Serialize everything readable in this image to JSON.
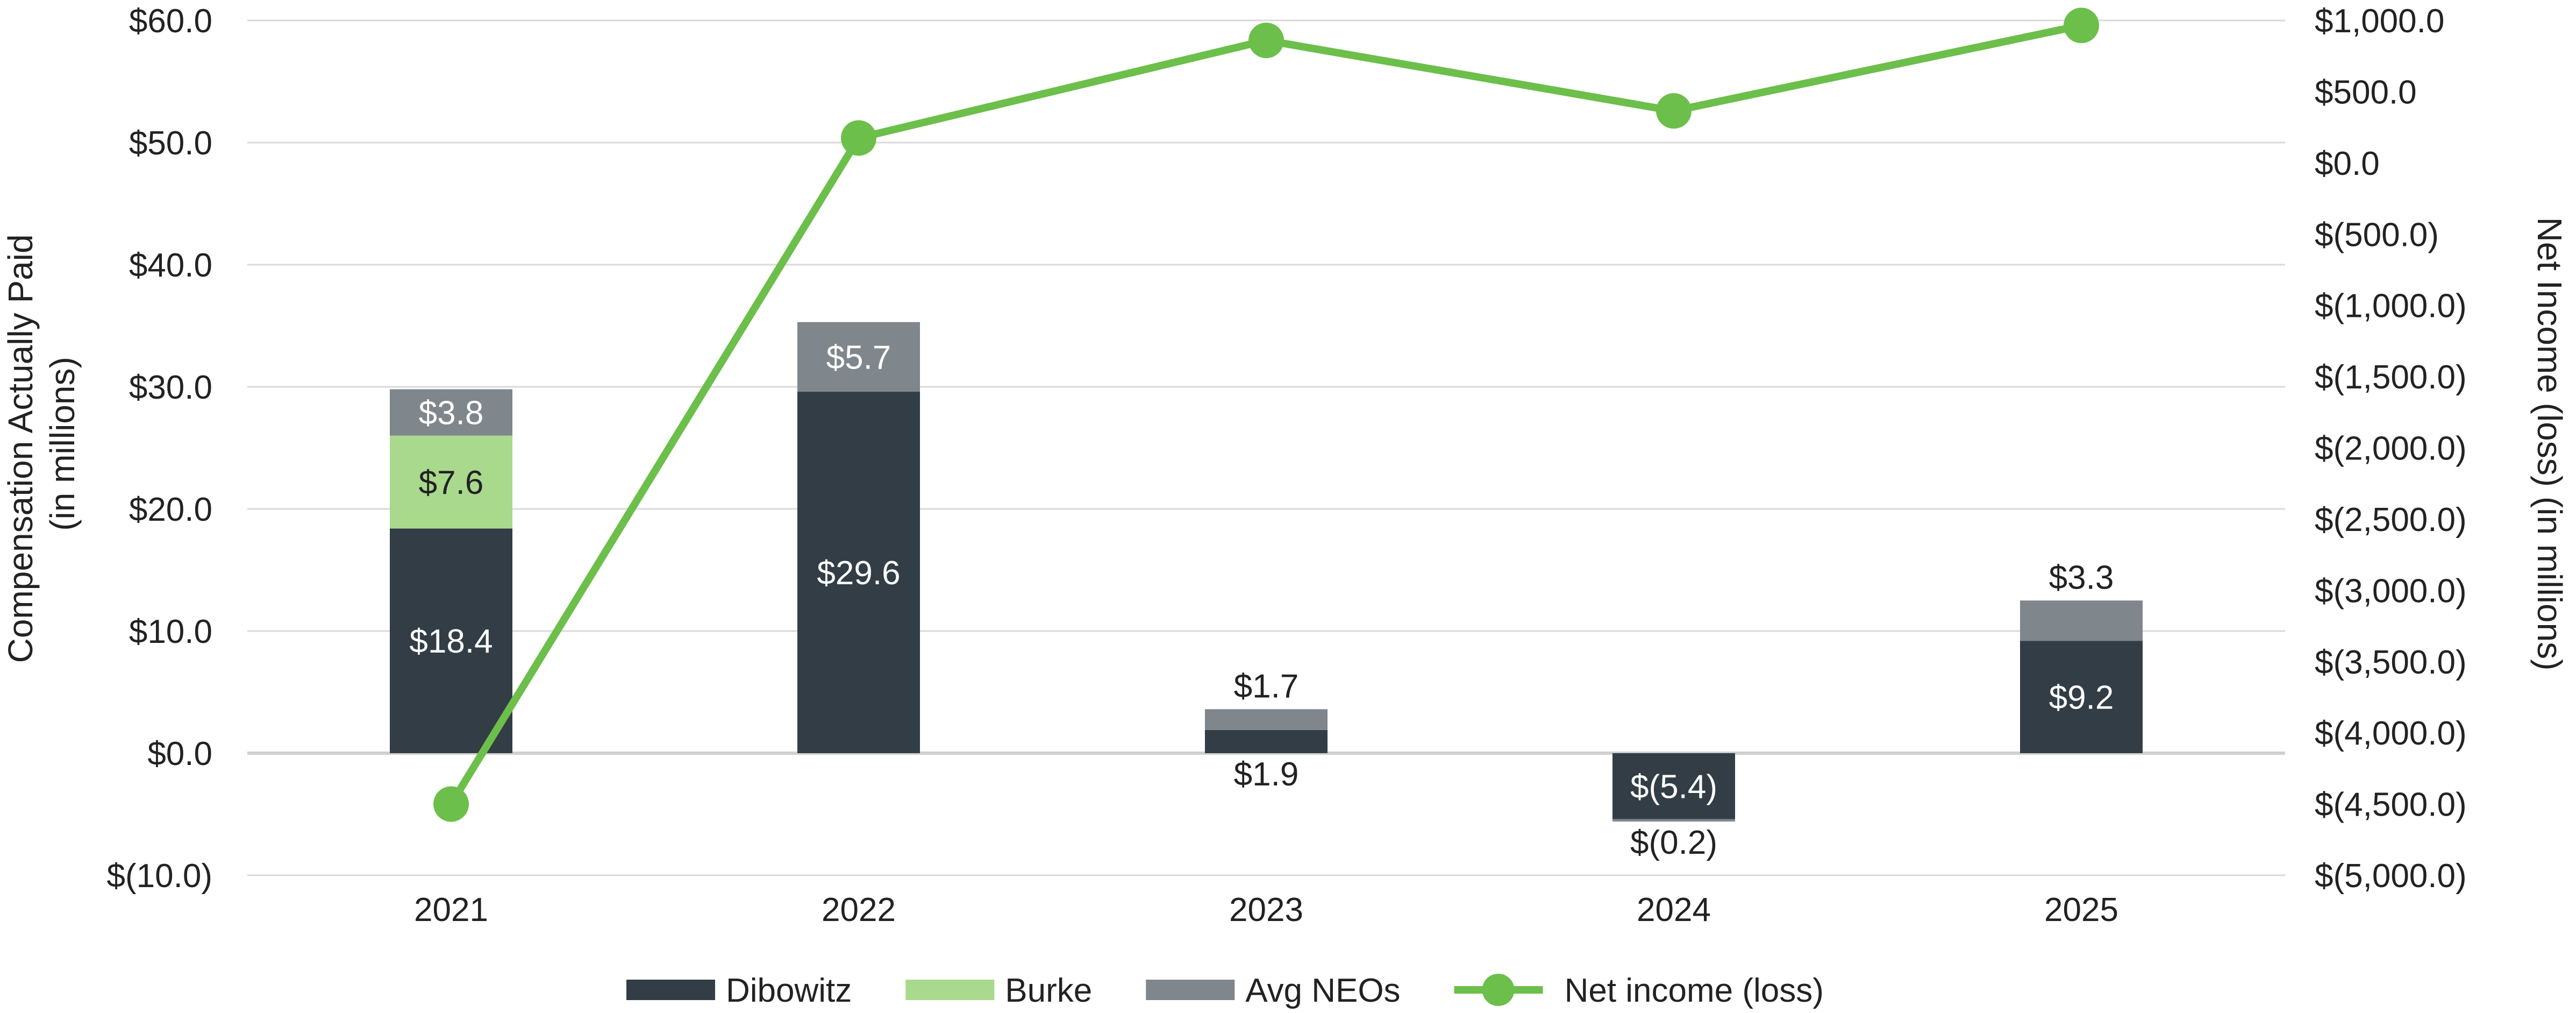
{
  "chart_data": {
    "type": "bar",
    "stacked": true,
    "categories": [
      "2021",
      "2022",
      "2023",
      "2024",
      "2025"
    ],
    "series": [
      {
        "name": "Dibowitz",
        "color": "#323d46",
        "values": [
          18.4,
          29.6,
          1.9,
          -5.4,
          9.2
        ],
        "labels": [
          "$18.4",
          "$29.6",
          "$1.9",
          "$(5.4)",
          "$9.2"
        ]
      },
      {
        "name": "Burke",
        "color": "#a9d98c",
        "values": [
          7.6,
          0,
          0,
          0,
          0
        ],
        "labels": [
          "$7.6",
          "",
          "",
          "",
          ""
        ]
      },
      {
        "name": "Avg NEOs",
        "color": "#7f868c",
        "values": [
          3.8,
          5.7,
          1.7,
          -0.2,
          3.3
        ],
        "labels": [
          "$3.8",
          "$5.7",
          "$1.7",
          "$(0.2)",
          "$3.3"
        ]
      }
    ],
    "line_series": {
      "name": "Net income (loss)",
      "color": "#6cbf4a",
      "axis": "right",
      "values": [
        -4500,
        175,
        860,
        365,
        965
      ]
    },
    "ylabel": [
      "Compensation Actually Paid",
      "(in millions)"
    ],
    "ylabel_right": "Net Income (loss)  (in millions)",
    "ylim": [
      -10,
      60
    ],
    "yticks": [
      -10,
      0,
      10,
      20,
      30,
      40,
      50,
      60
    ],
    "ytick_labels": [
      "$(10.0)",
      "$0.0",
      "$10.0",
      "$20.0",
      "$30.0",
      "$40.0",
      "$50.0",
      "$60.0"
    ],
    "ylim_right": [
      -5000,
      1000
    ],
    "yticks_right": [
      -5000,
      -4500,
      -4000,
      -3500,
      -3000,
      -2500,
      -2000,
      -1500,
      -1000,
      -500,
      0,
      500,
      1000
    ],
    "ytick_labels_right": [
      "$(5,000.0)",
      "$(4,500.0)",
      "$(4,000.0)",
      "$(3,500.0)",
      "$(3,000.0)",
      "$(2,500.0)",
      "$(2,000.0)",
      "$(1,500.0)",
      "$(1,000.0)",
      "$(500.0)",
      "$0.0",
      "$500.0",
      "$1,000.0"
    ],
    "grid": true,
    "legend_position": "bottom-center"
  }
}
